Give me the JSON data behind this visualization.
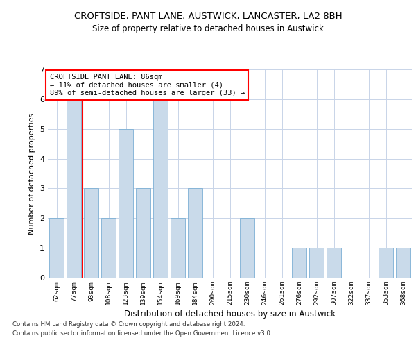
{
  "title_line1": "CROFTSIDE, PANT LANE, AUSTWICK, LANCASTER, LA2 8BH",
  "title_line2": "Size of property relative to detached houses in Austwick",
  "xlabel": "Distribution of detached houses by size in Austwick",
  "ylabel": "Number of detached properties",
  "categories": [
    "62sqm",
    "77sqm",
    "93sqm",
    "108sqm",
    "123sqm",
    "139sqm",
    "154sqm",
    "169sqm",
    "184sqm",
    "200sqm",
    "215sqm",
    "230sqm",
    "246sqm",
    "261sqm",
    "276sqm",
    "292sqm",
    "307sqm",
    "322sqm",
    "337sqm",
    "353sqm",
    "368sqm"
  ],
  "values": [
    2,
    6,
    3,
    2,
    5,
    3,
    6,
    2,
    3,
    0,
    0,
    2,
    0,
    0,
    1,
    1,
    1,
    0,
    0,
    1,
    1
  ],
  "bar_color": "#c9daea",
  "bar_edge_color": "#7bafd4",
  "grid_color": "#c8d4e8",
  "annotation_text": "CROFTSIDE PANT LANE: 86sqm\n← 11% of detached houses are smaller (4)\n89% of semi-detached houses are larger (33) →",
  "annotation_box_color": "white",
  "annotation_box_edge": "red",
  "vline_x_index": 1.5,
  "vline_color": "red",
  "ylim": [
    0,
    7
  ],
  "yticks": [
    0,
    1,
    2,
    3,
    4,
    5,
    6,
    7
  ],
  "footer_line1": "Contains HM Land Registry data © Crown copyright and database right 2024.",
  "footer_line2": "Contains public sector information licensed under the Open Government Licence v3.0.",
  "title_fontsize": 9.5,
  "subtitle_fontsize": 8.5,
  "bar_width": 0.85
}
